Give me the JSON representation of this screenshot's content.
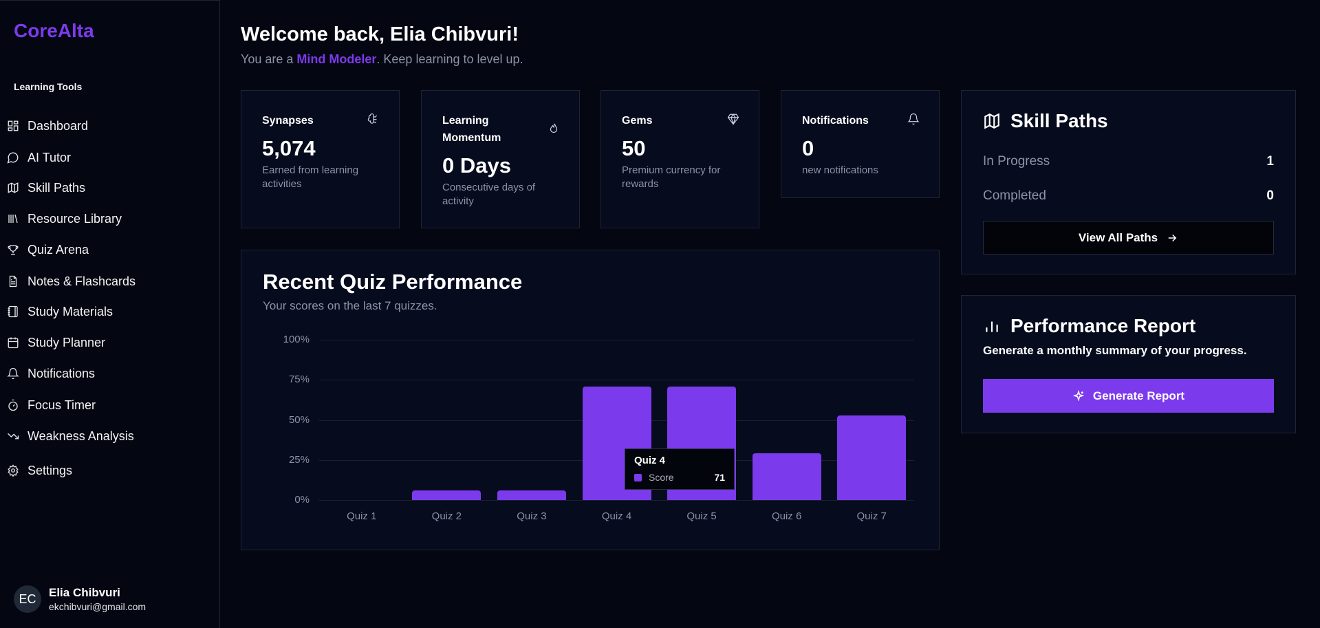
{
  "app": {
    "logo": "CoreAlta"
  },
  "sidebar": {
    "section": "Learning Tools",
    "items": [
      {
        "label": "Dashboard",
        "icon": "dashboard-icon"
      },
      {
        "label": "AI Tutor",
        "icon": "chat-icon"
      },
      {
        "label": "Skill Paths",
        "icon": "map-icon"
      },
      {
        "label": "Resource Library",
        "icon": "library-icon"
      },
      {
        "label": "Quiz Arena",
        "icon": "trophy-icon"
      },
      {
        "label": "Notes & Flashcards",
        "icon": "file-text-icon"
      },
      {
        "label": "Study Materials",
        "icon": "notebook-icon"
      },
      {
        "label": "Study Planner",
        "icon": "calendar-icon"
      },
      {
        "label": "Notifications",
        "icon": "bell-icon"
      },
      {
        "label": "Focus Timer",
        "icon": "timer-icon"
      },
      {
        "label": "Weakness Analysis",
        "icon": "trending-down-icon"
      },
      {
        "label": "Settings",
        "icon": "gear-icon"
      }
    ],
    "user": {
      "initials": "EC",
      "name": "Elia Chibvuri",
      "email": "ekchibvuri@gmail.com"
    }
  },
  "header": {
    "title": "Welcome back, Elia Chibvuri!",
    "sub_pre": "You are a ",
    "rank": "Mind Modeler",
    "sub_post": ". Keep learning to level up."
  },
  "stats": [
    {
      "title": "Synapses",
      "value": "5,074",
      "desc": "Earned from learning activities",
      "icon": "brain-icon"
    },
    {
      "title": "Learning Momentum",
      "value": "0 Days",
      "desc": "Consecutive days of activity",
      "icon": "flame-icon"
    },
    {
      "title": "Gems",
      "value": "50",
      "desc": "Premium currency for rewards",
      "icon": "gem-icon"
    },
    {
      "title": "Notifications",
      "value": "0",
      "desc": "new notifications",
      "icon": "bell-icon"
    }
  ],
  "colors": {
    "accent": "#7c3aed",
    "background": "#040611",
    "card": "#060b1d"
  },
  "chart_data": {
    "type": "bar",
    "title": "Recent Quiz Performance",
    "subtitle": "Your scores on the last 7 quizzes.",
    "categories": [
      "Quiz 1",
      "Quiz 2",
      "Quiz 3",
      "Quiz 4",
      "Quiz 5",
      "Quiz 6",
      "Quiz 7"
    ],
    "values": [
      0,
      6,
      6,
      71,
      71,
      29,
      53
    ],
    "ylim": [
      0,
      100
    ],
    "yticks": [
      "0%",
      "25%",
      "50%",
      "75%",
      "100%"
    ],
    "grid": true,
    "tooltip": {
      "title": "Quiz 4",
      "label": "Score",
      "value": "71"
    }
  },
  "skill_paths": {
    "title": "Skill Paths",
    "in_progress_label": "In Progress",
    "in_progress": "1",
    "completed_label": "Completed",
    "completed": "0",
    "button": "View All Paths"
  },
  "report": {
    "title": "Performance Report",
    "desc": "Generate a monthly summary of your progress.",
    "button": "Generate Report"
  }
}
